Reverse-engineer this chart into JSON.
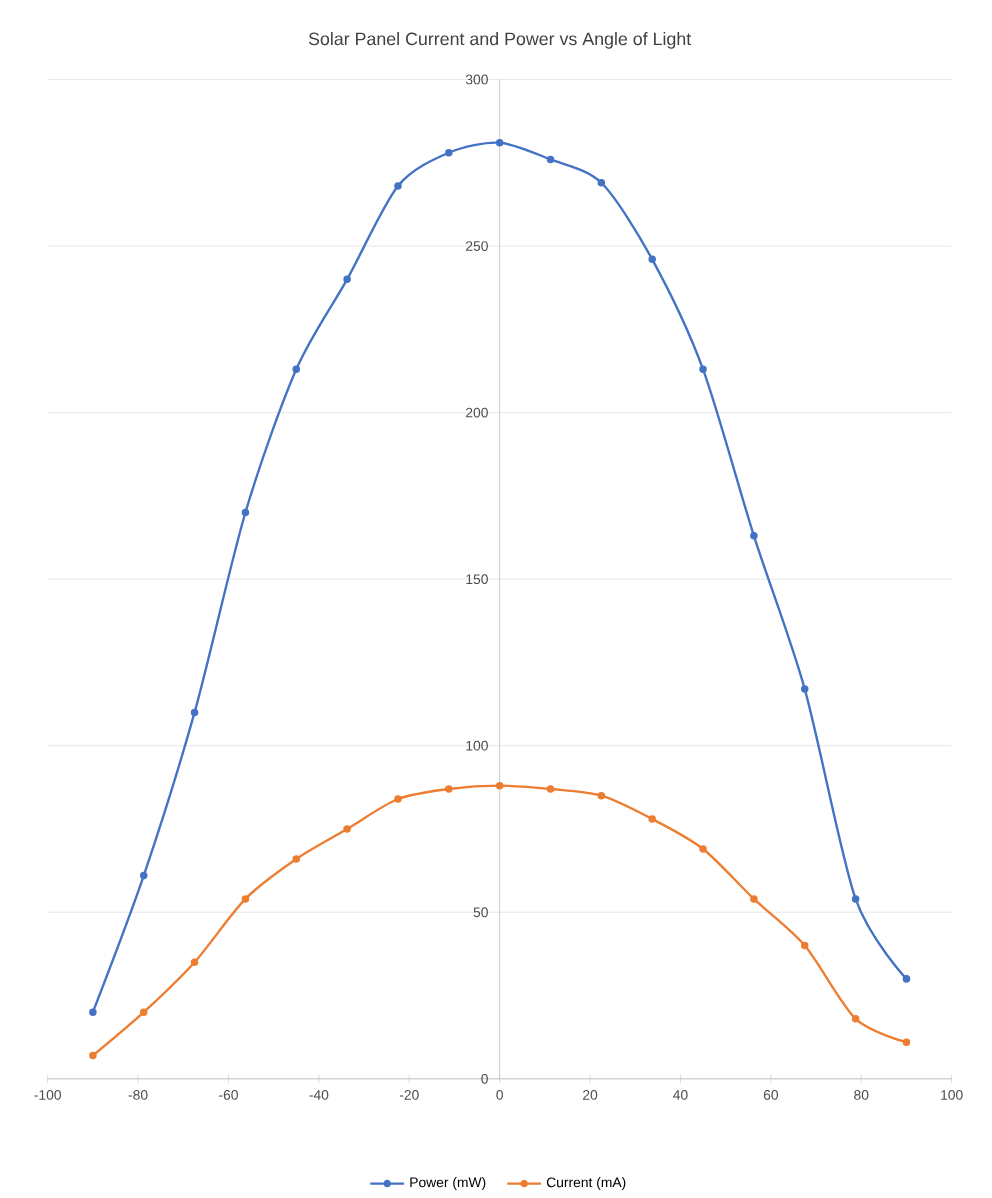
{
  "chart_data": {
    "type": "line",
    "title": "Solar Panel Current and Power vs Angle of Light",
    "x": [
      -90,
      -78.75,
      -67.5,
      -56.25,
      -45,
      -33.75,
      -22.5,
      -11.25,
      0,
      11.25,
      22.5,
      33.75,
      45,
      56.25,
      67.5,
      78.75,
      90
    ],
    "series": [
      {
        "name": "Power (mW)",
        "color": "#4472c4",
        "values": [
          20,
          61,
          110,
          170,
          213,
          240,
          268,
          278,
          281,
          276,
          269,
          246,
          213,
          163,
          117,
          54,
          30
        ]
      },
      {
        "name": "Current (mA)",
        "color": "#ed7d31",
        "values": [
          7,
          20,
          35,
          54,
          66,
          75,
          84,
          87,
          88,
          87,
          85,
          78,
          69,
          54,
          40,
          18,
          11
        ]
      }
    ],
    "xlim": [
      -100,
      100
    ],
    "xticks": [
      -100,
      -80,
      -60,
      -40,
      -20,
      0,
      20,
      40,
      60,
      80,
      100
    ],
    "ylim": [
      0,
      300
    ],
    "yticks": [
      0,
      50,
      100,
      150,
      200,
      250,
      300
    ],
    "grid": "y",
    "legend": "bottom",
    "marker": "circle",
    "line_style": "solid"
  }
}
